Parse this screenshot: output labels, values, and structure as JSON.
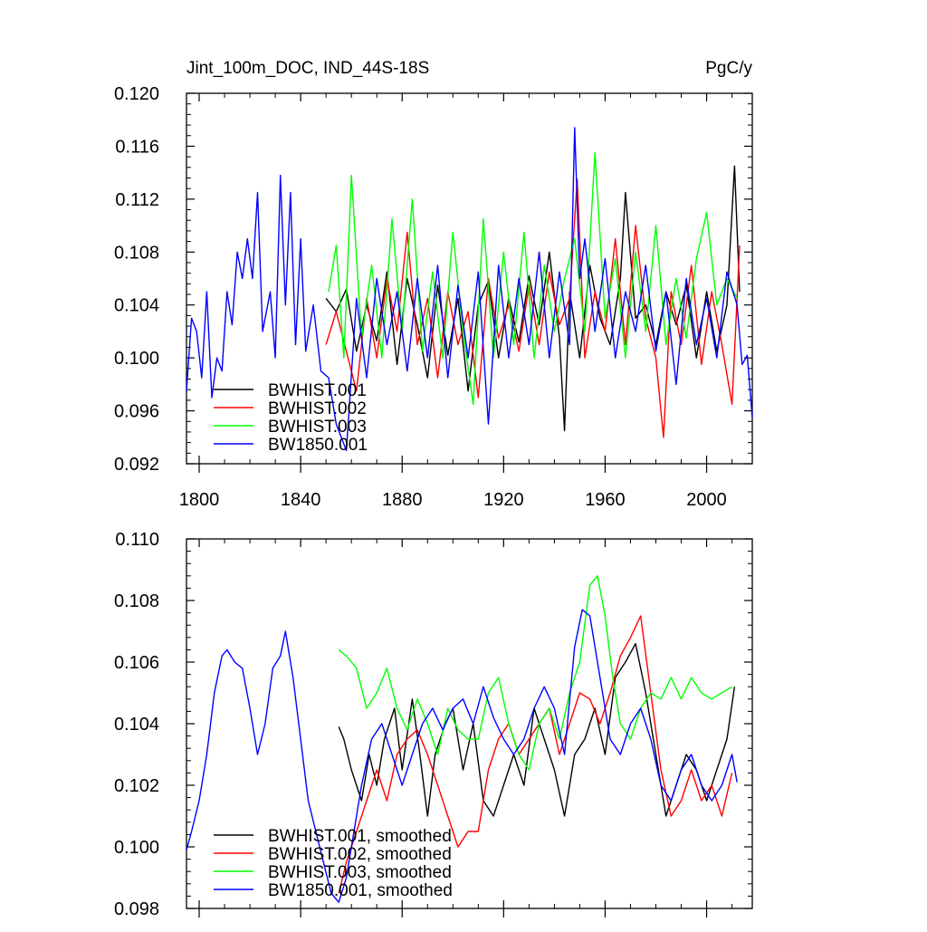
{
  "chart_data": [
    {
      "type": "line",
      "title": "Jint_100m_DOC, IND_44S-18S",
      "units": "PgC/y",
      "xlim": [
        1795,
        2018
      ],
      "ylim": [
        0.092,
        0.12
      ],
      "x_ticks": [
        1800,
        1840,
        1880,
        1920,
        1960,
        2000
      ],
      "y_ticks": [
        0.092,
        0.096,
        0.1,
        0.104,
        0.108,
        0.112,
        0.116,
        0.12
      ],
      "y_tick_labels": [
        "0.092",
        "0.096",
        "0.100",
        "0.104",
        "0.108",
        "0.112",
        "0.116",
        "0.120"
      ],
      "legend_position": "bottom-left",
      "series": [
        {
          "name": "BWHIST.001",
          "color": "#000000",
          "x": [
            1850,
            1854,
            1858,
            1862,
            1866,
            1870,
            1874,
            1878,
            1882,
            1886,
            1890,
            1894,
            1898,
            1902,
            1906,
            1910,
            1914,
            1918,
            1922,
            1926,
            1930,
            1934,
            1938,
            1942,
            1944,
            1946,
            1950,
            1954,
            1958,
            1962,
            1966,
            1968,
            1972,
            1976,
            1980,
            1984,
            1988,
            1992,
            1996,
            2000,
            2004,
            2008,
            2011,
            2013
          ],
          "y": [
            0.1045,
            0.1035,
            0.1052,
            0.1005,
            0.104,
            0.1013,
            0.1065,
            0.0995,
            0.106,
            0.1025,
            0.0985,
            0.1055,
            0.1002,
            0.1045,
            0.0975,
            0.104,
            0.1058,
            0.1,
            0.1045,
            0.1012,
            0.1062,
            0.1025,
            0.108,
            0.1015,
            0.0945,
            0.105,
            0.1,
            0.107,
            0.103,
            0.101,
            0.106,
            0.1125,
            0.103,
            0.104,
            0.101,
            0.105,
            0.1025,
            0.1055,
            0.1,
            0.105,
            0.1005,
            0.104,
            0.1145,
            0.105
          ]
        },
        {
          "name": "BWHIST.002",
          "color": "#ff0000",
          "x": [
            1850,
            1854,
            1858,
            1862,
            1866,
            1870,
            1874,
            1878,
            1882,
            1886,
            1890,
            1894,
            1898,
            1902,
            1906,
            1910,
            1914,
            1918,
            1922,
            1926,
            1930,
            1934,
            1938,
            1942,
            1946,
            1949,
            1952,
            1956,
            1960,
            1964,
            1968,
            1972,
            1976,
            1980,
            1983,
            1986,
            1990,
            1994,
            1998,
            2002,
            2006,
            2010,
            2013
          ],
          "y": [
            0.101,
            0.1035,
            0.1005,
            0.0975,
            0.1045,
            0.1,
            0.106,
            0.102,
            0.1095,
            0.101,
            0.1045,
            0.0985,
            0.105,
            0.101,
            0.1035,
            0.097,
            0.106,
            0.1015,
            0.104,
            0.1005,
            0.1055,
            0.101,
            0.1065,
            0.1025,
            0.1045,
            0.1135,
            0.1,
            0.105,
            0.102,
            0.109,
            0.101,
            0.11,
            0.103,
            0.1,
            0.094,
            0.105,
            0.101,
            0.107,
            0.0995,
            0.105,
            0.101,
            0.0965,
            0.1085
          ]
        },
        {
          "name": "BWHIST.003",
          "color": "#00ff00",
          "x": [
            1851,
            1854,
            1857,
            1860,
            1864,
            1868,
            1872,
            1876,
            1880,
            1884,
            1888,
            1892,
            1896,
            1900,
            1904,
            1908,
            1912,
            1916,
            1920,
            1924,
            1928,
            1932,
            1936,
            1940,
            1944,
            1948,
            1952,
            1956,
            1960,
            1964,
            1968,
            1972,
            1976,
            1980,
            1984,
            1988,
            1992,
            1996,
            2000,
            2004,
            2008,
            2012
          ],
          "y": [
            0.105,
            0.1085,
            0.1,
            0.1138,
            0.1015,
            0.107,
            0.1,
            0.1105,
            0.102,
            0.112,
            0.1005,
            0.1065,
            0.1,
            0.1095,
            0.102,
            0.0965,
            0.1105,
            0.1,
            0.108,
            0.101,
            0.1095,
            0.1,
            0.107,
            0.102,
            0.106,
            0.109,
            0.102,
            0.1155,
            0.103,
            0.1075,
            0.1,
            0.108,
            0.102,
            0.11,
            0.101,
            0.106,
            0.1015,
            0.1075,
            0.111,
            0.104,
            0.106,
            0.1045
          ]
        },
        {
          "name": "BW1850.001",
          "color": "#0000ff",
          "x": [
            1795,
            1797,
            1799,
            1801,
            1803,
            1805,
            1807,
            1809,
            1811,
            1813,
            1815,
            1817,
            1819,
            1821,
            1823,
            1825,
            1828,
            1830,
            1832,
            1834,
            1836,
            1838,
            1840,
            1842,
            1845,
            1848,
            1851,
            1854,
            1858,
            1862,
            1866,
            1870,
            1874,
            1878,
            1882,
            1886,
            1890,
            1894,
            1898,
            1902,
            1906,
            1910,
            1914,
            1918,
            1922,
            1926,
            1930,
            1934,
            1938,
            1942,
            1946,
            1948,
            1950,
            1952,
            1956,
            1960,
            1964,
            1968,
            1972,
            1976,
            1980,
            1984,
            1988,
            1992,
            1996,
            2000,
            2004,
            2008,
            2012,
            2014,
            2016,
            2018
          ],
          "y": [
            0.0975,
            0.103,
            0.102,
            0.0985,
            0.105,
            0.097,
            0.1,
            0.099,
            0.105,
            0.1025,
            0.108,
            0.106,
            0.109,
            0.106,
            0.1125,
            0.102,
            0.105,
            0.1,
            0.1138,
            0.104,
            0.1125,
            0.101,
            0.109,
            0.1005,
            0.104,
            0.099,
            0.0985,
            0.095,
            0.093,
            0.1045,
            0.0985,
            0.106,
            0.101,
            0.105,
            0.099,
            0.106,
            0.1,
            0.107,
            0.0985,
            0.1055,
            0.1,
            0.1065,
            0.095,
            0.107,
            0.1,
            0.106,
            0.101,
            0.108,
            0.1,
            0.1065,
            0.101,
            0.1174,
            0.106,
            0.109,
            0.102,
            0.1075,
            0.1,
            0.105,
            0.102,
            0.107,
            0.1005,
            0.105,
            0.098,
            0.106,
            0.101,
            0.1045,
            0.1,
            0.1065,
            0.104,
            0.0995,
            0.1002,
            0.0955
          ]
        }
      ]
    },
    {
      "type": "line",
      "xlim": [
        1795,
        2018
      ],
      "ylim": [
        0.098,
        0.11
      ],
      "y_ticks": [
        0.098,
        0.1,
        0.102,
        0.104,
        0.106,
        0.108,
        0.11
      ],
      "y_tick_labels": [
        "0.098",
        "0.100",
        "0.102",
        "0.104",
        "0.106",
        "0.108",
        "0.110"
      ],
      "legend_position": "bottom-left",
      "series": [
        {
          "name": "BWHIST.001, smoothed",
          "color": "#000000",
          "x": [
            1855,
            1857,
            1860,
            1864,
            1867,
            1870,
            1873,
            1877,
            1880,
            1884,
            1887,
            1890,
            1893,
            1897,
            1900,
            1904,
            1908,
            1912,
            1916,
            1920,
            1924,
            1928,
            1932,
            1936,
            1940,
            1944,
            1948,
            1952,
            1956,
            1960,
            1964,
            1968,
            1972,
            1976,
            1980,
            1984,
            1988,
            1992,
            1996,
            2000,
            2004,
            2008,
            2011
          ],
          "y": [
            0.1039,
            0.1035,
            0.1025,
            0.1015,
            0.103,
            0.102,
            0.1035,
            0.1045,
            0.1025,
            0.1048,
            0.103,
            0.101,
            0.103,
            0.104,
            0.1045,
            0.1025,
            0.104,
            0.1015,
            0.101,
            0.102,
            0.103,
            0.102,
            0.1045,
            0.1035,
            0.1025,
            0.101,
            0.103,
            0.1035,
            0.1045,
            0.103,
            0.1055,
            0.106,
            0.1066,
            0.105,
            0.103,
            0.101,
            0.102,
            0.103,
            0.1025,
            0.1015,
            0.1025,
            0.1035,
            0.1052
          ]
        },
        {
          "name": "BWHIST.002, smoothed",
          "color": "#ff0000",
          "x": [
            1855,
            1858,
            1862,
            1866,
            1870,
            1874,
            1878,
            1882,
            1886,
            1890,
            1894,
            1898,
            1902,
            1906,
            1910,
            1914,
            1918,
            1922,
            1926,
            1930,
            1934,
            1938,
            1942,
            1946,
            1950,
            1954,
            1958,
            1962,
            1966,
            1970,
            1974,
            1978,
            1982,
            1986,
            1990,
            1994,
            1998,
            2002,
            2006,
            2010
          ],
          "y": [
            0.0985,
            0.0995,
            0.1005,
            0.1015,
            0.1025,
            0.1015,
            0.103,
            0.1035,
            0.1038,
            0.103,
            0.102,
            0.101,
            0.1,
            0.1005,
            0.1005,
            0.1025,
            0.1035,
            0.104,
            0.103,
            0.1035,
            0.104,
            0.1045,
            0.103,
            0.104,
            0.105,
            0.1048,
            0.104,
            0.105,
            0.1062,
            0.1068,
            0.1075,
            0.105,
            0.1025,
            0.101,
            0.1015,
            0.1025,
            0.1015,
            0.102,
            0.101,
            0.1024
          ]
        },
        {
          "name": "BWHIST.003, smoothed",
          "color": "#00ff00",
          "x": [
            1855,
            1858,
            1862,
            1866,
            1870,
            1874,
            1878,
            1882,
            1886,
            1890,
            1894,
            1898,
            1902,
            1906,
            1910,
            1914,
            1918,
            1922,
            1926,
            1930,
            1934,
            1938,
            1942,
            1946,
            1950,
            1954,
            1957,
            1960,
            1963,
            1966,
            1970,
            1974,
            1978,
            1982,
            1986,
            1990,
            1994,
            1998,
            2002,
            2006,
            2010
          ],
          "y": [
            0.1064,
            0.1062,
            0.1058,
            0.1045,
            0.105,
            0.1058,
            0.1045,
            0.1038,
            0.1048,
            0.104,
            0.103,
            0.1045,
            0.1038,
            0.1035,
            0.1035,
            0.105,
            0.1055,
            0.104,
            0.103,
            0.1025,
            0.104,
            0.1045,
            0.1035,
            0.105,
            0.106,
            0.1085,
            0.1088,
            0.1075,
            0.1055,
            0.104,
            0.1035,
            0.1045,
            0.105,
            0.1048,
            0.1055,
            0.1048,
            0.1055,
            0.105,
            0.1048,
            0.105,
            0.1052
          ]
        },
        {
          "name": "BW1850.001, smoothed",
          "color": "#0000ff",
          "x": [
            1795,
            1797,
            1800,
            1803,
            1806,
            1809,
            1811,
            1814,
            1817,
            1820,
            1823,
            1826,
            1829,
            1832,
            1834,
            1837,
            1840,
            1843,
            1846,
            1849,
            1852,
            1855,
            1858,
            1861,
            1864,
            1868,
            1872,
            1876,
            1880,
            1884,
            1888,
            1892,
            1896,
            1900,
            1904,
            1908,
            1912,
            1916,
            1920,
            1924,
            1928,
            1932,
            1936,
            1940,
            1944,
            1948,
            1951,
            1954,
            1958,
            1962,
            1966,
            1970,
            1974,
            1978,
            1982,
            1986,
            1990,
            1994,
            1998,
            2002,
            2006,
            2010,
            2012
          ],
          "y": [
            0.0999,
            0.1005,
            0.1015,
            0.103,
            0.105,
            0.1062,
            0.1064,
            0.106,
            0.1058,
            0.1045,
            0.103,
            0.104,
            0.1058,
            0.1062,
            0.107,
            0.1055,
            0.1035,
            0.1015,
            0.1005,
            0.0995,
            0.0985,
            0.0982,
            0.099,
            0.1005,
            0.102,
            0.1035,
            0.104,
            0.103,
            0.102,
            0.103,
            0.104,
            0.1045,
            0.1038,
            0.1045,
            0.1048,
            0.104,
            0.1052,
            0.1042,
            0.1035,
            0.103,
            0.1035,
            0.1045,
            0.1052,
            0.1045,
            0.103,
            0.1065,
            0.1077,
            0.1075,
            0.1055,
            0.1035,
            0.103,
            0.104,
            0.1045,
            0.1035,
            0.102,
            0.1015,
            0.1025,
            0.103,
            0.102,
            0.1015,
            0.102,
            0.103,
            0.1021
          ]
        }
      ]
    }
  ]
}
